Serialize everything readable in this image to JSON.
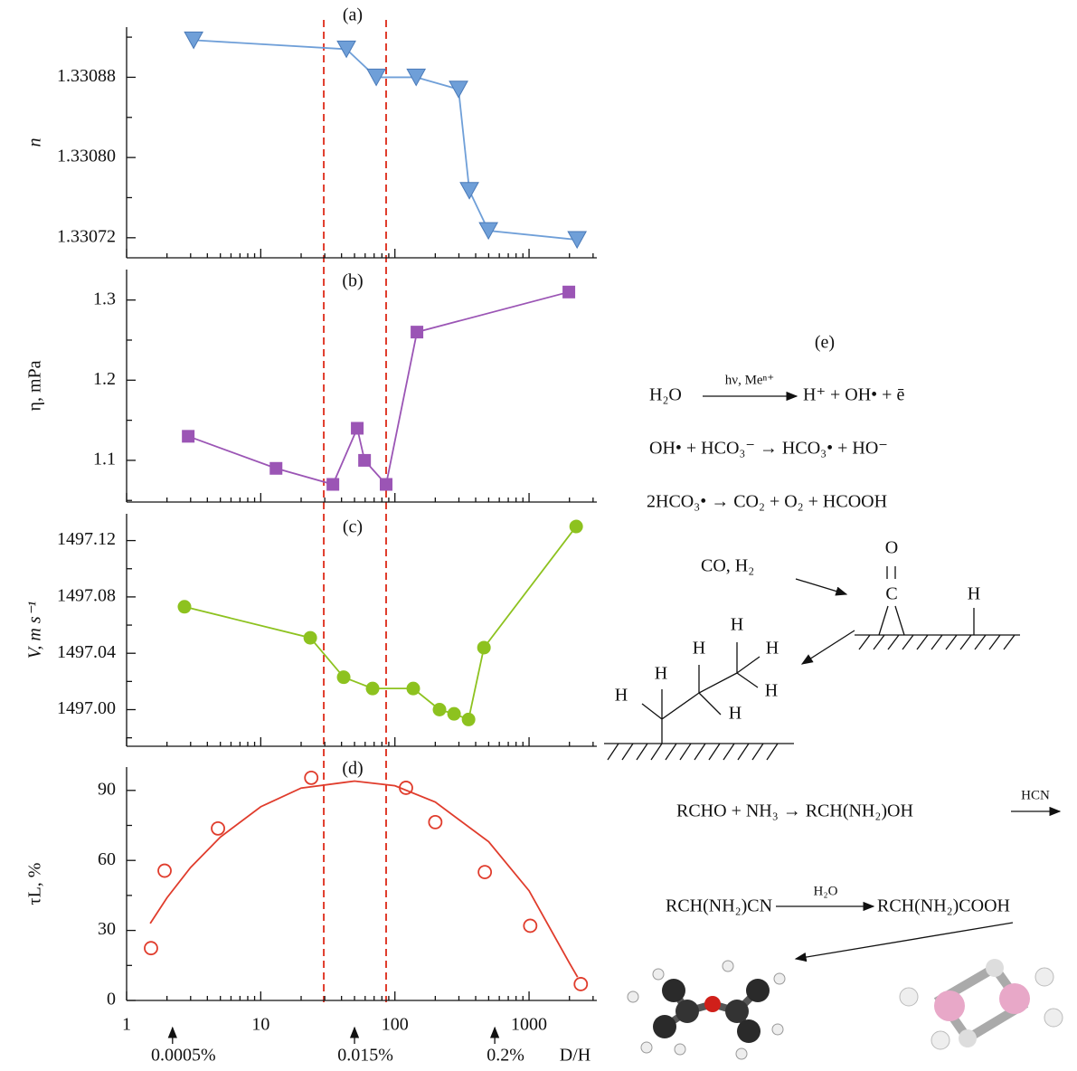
{
  "chart_data": [
    {
      "type": "line",
      "title": "(a)",
      "ylabel": "n",
      "log_x": true,
      "x": [
        3.16,
        43.5,
        72.6,
        144,
        298,
        359,
        498,
        2280
      ],
      "series": [
        {
          "color": "#6f9fd8",
          "marker": "triangle-down",
          "values": [
            1.330917,
            1.330908,
            1.33088,
            1.33088,
            1.330868,
            1.330767,
            1.330727,
            1.330718
          ]
        }
      ],
      "xlim": [
        1,
        3200
      ],
      "ylim": [
        1.3307,
        1.33093
      ],
      "yticks": [
        {
          "value": 1.33072,
          "label": "1.33072"
        },
        {
          "value": 1.3308,
          "label": "1.33080"
        },
        {
          "value": 1.33088,
          "label": "1.33088"
        }
      ],
      "yminor": [
        1.33076,
        1.33084,
        1.33092
      ],
      "vlines": [
        29.5,
        86
      ],
      "vline_color": "#e03c2c"
    },
    {
      "type": "line",
      "title": "(b)",
      "ylabel": "η, mPa",
      "log_x": true,
      "x": [
        2.88,
        13,
        34.5,
        52.4,
        59.4,
        86,
        146,
        1980
      ],
      "series": [
        {
          "color": "#9b55b5",
          "marker": "square",
          "values": [
            1.13,
            1.09,
            1.07,
            1.14,
            1.1,
            1.07,
            1.26,
            1.31
          ]
        }
      ],
      "xlim": [
        1,
        3200
      ],
      "ylim": [
        1.048,
        1.338
      ],
      "yticks": [
        1.1,
        1.2,
        1.3
      ],
      "yminor": [
        1.05,
        1.15,
        1.25
      ]
    },
    {
      "type": "line",
      "title": "(c)",
      "ylabel": "V, m s⁻¹",
      "log_x": true,
      "x": [
        2.7,
        23.4,
        41.5,
        68.2,
        137,
        215,
        276,
        354,
        461,
        2245
      ],
      "series": [
        {
          "color": "#8dc21f",
          "marker": "circle",
          "values": [
            1497.073,
            1497.051,
            1497.023,
            1497.015,
            1497.015,
            1497.0,
            1496.997,
            1496.993,
            1497.044,
            1497.13
          ]
        }
      ],
      "xlim": [
        1,
        3200
      ],
      "ylim": [
        1496.974,
        1497.139
      ],
      "yticks": [
        {
          "value": 1497,
          "label": "1497.00"
        },
        1497.04,
        1497.08,
        1497.12
      ],
      "yminor": [
        1496.98,
        1497.02,
        1497.06,
        1497.1
      ]
    },
    {
      "type": "scatter",
      "title": "(d)",
      "ylabel": "τL, %",
      "xlabel": "D/H",
      "log_x": true,
      "x": [
        1.52,
        1.92,
        4.8,
        23.8,
        121,
        200,
        468,
        1020,
        2430
      ],
      "series": [
        {
          "color": "#e03c2c",
          "marker": "open-circle",
          "values": [
            22.4,
            55.6,
            73.7,
            95.4,
            91.1,
            76.4,
            55,
            32,
            7
          ]
        },
        {
          "color": "#e03c2c",
          "marker": "none",
          "x": [
            1.5,
            2,
            3,
            5,
            10,
            20,
            50,
            100,
            200,
            500,
            1000,
            2000,
            2300
          ],
          "values": [
            33,
            44,
            57,
            70,
            83,
            91,
            94,
            92,
            85,
            68,
            47,
            16,
            10
          ]
        }
      ],
      "xlim": [
        1,
        3200
      ],
      "ylim": [
        0,
        100
      ],
      "yticks": [
        0,
        30,
        60,
        90
      ],
      "yminor": [
        15,
        45,
        75
      ],
      "xticks": [
        1,
        10,
        100,
        1000
      ],
      "xminor": [
        2,
        3,
        4,
        5,
        6,
        7,
        8,
        9,
        20,
        30,
        40,
        50,
        60,
        70,
        80,
        90,
        200,
        300,
        400,
        500,
        600,
        700,
        800,
        900,
        2000,
        3000
      ],
      "annotations": [
        {
          "text": "0.0005%",
          "x": 2.2
        },
        {
          "text": "0.015%",
          "x": 50
        },
        {
          "text": "0.2%",
          "x": 555
        }
      ]
    }
  ],
  "scheme": {
    "title": "(e)",
    "eq1": {
      "left": "H₂O",
      "over": "hν, Meⁿ⁺",
      "right": "H⁺ + OH• + ē"
    },
    "eq2": "OH• + HCO₃⁻ → HCO₃• + HO⁻",
    "eq3": "2HCO₃• → CO₂ + O₂ + HCOOH",
    "adsorption": {
      "gas": "CO, H₂",
      "atoms": [
        "O",
        "C",
        "H"
      ]
    },
    "hydrocarbon": [
      "H",
      "H",
      "H",
      "H",
      "H",
      "H",
      "H"
    ],
    "eq4": {
      "left": "RCHO + NH₃ → RCH(NH₂)OH",
      "over": "HCN"
    },
    "eq5": {
      "left": "RCH(NH₂)CN",
      "over": "H₂O",
      "right": "RCH(NH₂)COOH"
    }
  }
}
